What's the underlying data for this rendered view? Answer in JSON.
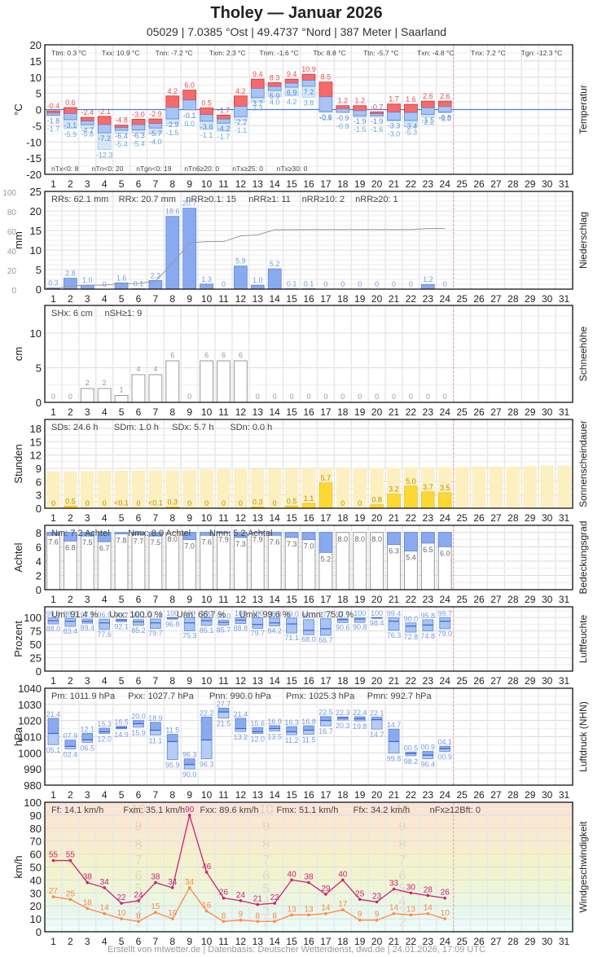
{
  "header": {
    "title": "Tholey  —  Januar 2026",
    "subtitle": "05029  |  7.0385 °Ost  |  49.4737 °Nord  |  387 Meter  |  Saarland"
  },
  "footer": "Erstellt von mtwetter.de | Datenbasis: Deutscher Wetterdienst, dwd.de | 24.01.2026, 17:09 UTC",
  "days": [
    1,
    2,
    3,
    4,
    5,
    6,
    7,
    8,
    9,
    10,
    11,
    12,
    13,
    14,
    15,
    16,
    17,
    18,
    19,
    20,
    21,
    22,
    23,
    24,
    25,
    26,
    27,
    28,
    29,
    30,
    31
  ],
  "chart_data": [
    {
      "type": "bar",
      "id": "temperatur",
      "title": "Temperatur",
      "ylabel": "°C",
      "ylim": [
        -20,
        20
      ],
      "yticks": [
        20,
        15,
        10,
        5,
        0,
        -5,
        -10,
        -15,
        -20
      ],
      "stats_top": [
        "Ttm: 0.3 °C",
        "Txx: 10.9 °C",
        "Tnn: -7.2 °C",
        "Txm: 2.3 °C",
        "Tnm: -1.6 °C",
        "Ttx: 8.8 °C",
        "Ttn: -5.7 °C",
        "Txn: -4.8 °C",
        "Tnx: 7.2 °C",
        "Tgn: -12.3 °C"
      ],
      "stats_bottom": [
        "nTx<0: 8",
        "nTn<0: 20",
        "nTgn<0: 19",
        "nTn6≥20: 0",
        "nTx≥25: 0",
        "nTx≥30: 0"
      ],
      "series": [
        {
          "name": "Tmax",
          "values": [
            -0.4,
            0.6,
            -2.4,
            -2.1,
            -4.8,
            -3.0,
            -2.9,
            4.2,
            6.0,
            0.5,
            -1.7,
            4.2,
            9.4,
            8.3,
            9.4,
            10.9,
            8.5,
            1.2,
            1.2,
            -0.7,
            1.7,
            1.6,
            2.6,
            2.6
          ]
        },
        {
          "name": "Tmin",
          "values": [
            -1.8,
            -3.1,
            -4.7,
            -7.2,
            -6.4,
            -6.3,
            -5.7,
            -2.9,
            -0.1,
            -3.6,
            -4.2,
            -2.2,
            3.7,
            5.9,
            6.9,
            7.2,
            -0.6,
            -0.9,
            -1.9,
            -1.9,
            -3.3,
            -3.4,
            -1.5,
            -0.8
          ]
        },
        {
          "name": "Tgmin",
          "values": [
            -1.7,
            -5.9,
            -5.8,
            -12.3,
            -5.4,
            -5.4,
            -4.0,
            -1.5,
            0.0,
            -1.1,
            -1.7,
            -1.1,
            2.3,
            4.0,
            4.2,
            3.8,
            -0.9,
            -0.9,
            -1.5,
            -1.6,
            -3.0,
            -5.3,
            -2.2,
            -1.0
          ]
        }
      ]
    },
    {
      "type": "bar",
      "id": "niederschlag",
      "title": "Niederschlag",
      "ylabel": "mm",
      "ylim": [
        0,
        25
      ],
      "yticks": [
        25,
        20,
        15,
        10,
        5,
        0
      ],
      "yticks_cumulative": [
        100,
        80,
        60,
        40,
        20,
        0
      ],
      "stats_top": [
        "RRs: 62.1 mm",
        "RRx: 20.7 mm",
        "nRR≥0.1: 15",
        "nRR≥1: 11",
        "nRR≥10: 2",
        "nRR≥20: 1"
      ],
      "values": [
        0.3,
        2.8,
        1.0,
        0,
        1.6,
        0.1,
        2.2,
        18.6,
        20.7,
        1.3,
        0,
        5.9,
        1.0,
        5.2,
        0.1,
        0.1,
        0,
        0,
        0,
        0,
        0,
        0,
        1.2,
        0
      ],
      "labels": [
        "0.3",
        "2.8",
        "1.0",
        "0",
        "1.6",
        "0.1",
        "2.2",
        "18.6",
        "20.7",
        "1.3",
        "0",
        "5.9",
        "1.0",
        "5.2",
        "0.1",
        "0.1",
        "0",
        "0",
        "0",
        "0",
        "0",
        "0",
        "1.2",
        "0"
      ]
    },
    {
      "type": "bar",
      "id": "schneehoehe",
      "title": "Schneehöhe",
      "ylabel": "cm",
      "ylim": [
        0,
        14
      ],
      "yticks": [
        10,
        5,
        0
      ],
      "stats_top": [
        "SHx: 6 cm",
        "nSH≥1: 9"
      ],
      "values": [
        0,
        0,
        2,
        2,
        1,
        4,
        4,
        6,
        0,
        6,
        6,
        6,
        0,
        0,
        0,
        0,
        0,
        0,
        0,
        0,
        0,
        0,
        0,
        0
      ]
    },
    {
      "type": "bar",
      "id": "sonnenscheindauer",
      "title": "Sonnenscheindauer",
      "ylabel": "Stunden",
      "ylim": [
        0,
        20
      ],
      "yticks": [
        18,
        15,
        12,
        9,
        6,
        3,
        0
      ],
      "stats_top": [
        "SDs: 24.6 h",
        "SDm: 1.0 h",
        "SDx: 5.7 h",
        "SDn: 0.0 h"
      ],
      "values": [
        0,
        0.5,
        0,
        0,
        0.05,
        0,
        0.05,
        0.3,
        0,
        0,
        0,
        0,
        0.3,
        0,
        0.5,
        1.1,
        5.7,
        0,
        0,
        0.8,
        3.2,
        5.0,
        3.7,
        3.5
      ],
      "labels": [
        "0",
        "0.5",
        "0",
        "0",
        "<0.1",
        "0",
        "<0.1",
        "0.3",
        "0",
        "0",
        "0",
        "0",
        "0.3",
        "0",
        "0.5",
        "1.1",
        "5.7",
        "0",
        "0",
        "0.8",
        "3.2",
        "5.0",
        "3.7",
        "3.5"
      ],
      "possible": [
        8.3,
        8.3,
        8.4,
        8.5,
        8.5,
        8.5,
        8.6,
        8.6,
        8.6,
        8.7,
        8.8,
        8.8,
        8.9,
        8.9,
        8.9,
        9.0,
        9.0,
        9.0,
        9.0,
        9.1,
        9.1,
        9.2,
        9.2,
        9.3,
        9.3,
        9.4,
        9.4,
        9.4,
        9.5,
        9.6,
        9.6
      ]
    },
    {
      "type": "bar",
      "id": "bedeckungsgrad",
      "title": "Bedeckungsgrad",
      "ylabel": "Achtel",
      "ylim": [
        0,
        9
      ],
      "yticks": [
        8,
        6,
        4,
        2,
        0
      ],
      "stats_top": [
        "Nm: 7.2 Achtel",
        "Nmx: 8.0 Achtel",
        "Nmn: 5.2 Achtel"
      ],
      "values": [
        7.6,
        6.8,
        7.5,
        6.7,
        7.8,
        7.7,
        7.5,
        8.0,
        7.0,
        7.6,
        7.9,
        7.3,
        7.9,
        7.6,
        7.3,
        7.0,
        5.2,
        8.0,
        8.0,
        8.0,
        6.3,
        5.4,
        6.5,
        6.0
      ]
    },
    {
      "type": "bar",
      "id": "luftfeuchte",
      "title": "Luftfeuchte",
      "ylabel": "Prozent",
      "ylim": [
        0,
        120
      ],
      "yticks": [
        100,
        75,
        50,
        25,
        0
      ],
      "stats_top": [
        "Um: 91.4 %",
        "Uxx: 100.0 %",
        "Unn: 66.7 %",
        "Umx: 99.6 %",
        "Umn: 75.0 %"
      ],
      "series": [
        {
          "name": "Umax",
          "values": [
            99.0,
            98.5,
            97.2,
            96.9,
            96.7,
            96.1,
            97.2,
            100,
            100,
            100,
            95.0,
            100,
            100,
            98.8,
            99.0,
            96.0,
            97.7,
            97.7,
            100,
            100,
            99.4,
            90.0,
            95.8,
            99.7
          ]
        },
        {
          "name": "Umean",
          "values": [
            94,
            93,
            93,
            90,
            95,
            92,
            90,
            99,
            90,
            94,
            91,
            95,
            87,
            90,
            88,
            76,
            79,
            96,
            97,
            99,
            93,
            84,
            86,
            93
          ]
        },
        {
          "name": "Umin",
          "values": [
            88.0,
            83.4,
            89.4,
            77.6,
            92.1,
            85.2,
            79.7,
            96.8,
            75.3,
            85.1,
            85.7,
            88.8,
            79.7,
            84.2,
            71.1,
            68.0,
            66.7,
            90.6,
            90.8,
            98.4,
            76.3,
            72.8,
            74.8,
            79.0
          ]
        }
      ]
    },
    {
      "type": "bar",
      "id": "luftdruck",
      "title": "Luftdruck (NHN)",
      "ylabel": "hPa",
      "ylim": [
        980,
        1040
      ],
      "yticks": [
        1040,
        1030,
        1020,
        1010,
        1000,
        990,
        980
      ],
      "stats_top": [
        "Pm: 1011.9 hPa",
        "Pxx: 1027.7 hPa",
        "Pnn: 990.0 hPa",
        "Pmx: 1025.3 hPa",
        "Pmn: 992.7 hPa"
      ],
      "series": [
        {
          "name": "Pmax",
          "values": [
            1021.4,
            1007.9,
            1012.1,
            1015.3,
            1016.5,
            1020.0,
            1018.9,
            1011.5,
            996.3,
            1022.2,
            1027.7,
            1021.4,
            1015.6,
            1016.9,
            1016.3,
            1016.8,
            1022.5,
            1022.3,
            1022.4,
            1022.1,
            1014.7,
            1000.5,
            1000.9,
            1004.1
          ]
        },
        {
          "name": "Pmean",
          "values": [
            1012,
            1004,
            1008,
            1013,
            1015.5,
            1018,
            1014,
            1007,
            992.7,
            1008,
            1025.3,
            1015,
            1013,
            1015,
            1013,
            1014,
            1020,
            1021.5,
            1021,
            1020.5,
            1007,
            999.5,
            998.5,
            1002.5
          ]
        },
        {
          "name": "Pmin",
          "values": [
            1005.1,
            1002.4,
            1006.5,
            1012.0,
            1014.9,
            1015.9,
            1011.1,
            995.9,
            990.0,
            996.3,
            1021.5,
            1013.2,
            1012.0,
            1013.5,
            1011.2,
            1011.5,
            1016.7,
            1020.3,
            1019.8,
            1014.7,
            999.8,
            998.2,
            996.4,
            1000.9
          ]
        }
      ],
      "labels_max": [
        "21.4",
        "07.9",
        "12.1",
        "15.3",
        "16.5",
        "20.0",
        "18.9",
        "11.5",
        "96.3",
        "22.2",
        "27.7",
        "21.4",
        "15.6",
        "16.9",
        "16.3",
        "16.8",
        "22.5",
        "22.3",
        "22.4",
        "22.1",
        "14.7",
        "00.5",
        "00.9",
        "04.1"
      ],
      "labels_min": [
        "05.1",
        "02.4",
        "06.5",
        "12.0",
        "14.9",
        "15.9",
        "11.1",
        "95.9",
        "90.0",
        "96.3",
        "21.5",
        "13.2",
        "12.0",
        "13.5",
        "11.2",
        "11.5",
        "16.7",
        "20.3",
        "19.8",
        "14.7",
        "99.8",
        "98.2",
        "96.4",
        "00.9"
      ]
    },
    {
      "type": "line",
      "id": "windgeschwindigkeit",
      "title": "Windgeschwindigkeit",
      "ylabel": "km/h",
      "ylim": [
        0,
        100
      ],
      "yticks": [
        100,
        90,
        80,
        70,
        60,
        50,
        40,
        30,
        20,
        10,
        0
      ],
      "stats_top": [
        "Ff: 14.1 km/h",
        "Fxm: 35.1 km/h",
        "Fxx: 89.6 km/h",
        "Fmx: 51.1 km/h",
        "Ffx: 34.2 km/h",
        "nFx≥12Bft: 0"
      ],
      "series": [
        {
          "name": "Fx (Böen)",
          "color": "#cc2277",
          "values": [
            55,
            55,
            38,
            34,
            22,
            24,
            38,
            34,
            90,
            46,
            26,
            24,
            21,
            22,
            40,
            38,
            29,
            40,
            25,
            23,
            33,
            30,
            28,
            26
          ]
        },
        {
          "name": "Fm (Mittel)",
          "color": "#ff8844",
          "values": [
            27,
            25,
            18,
            14,
            10,
            8,
            15,
            10,
            34,
            16,
            8,
            9,
            8,
            8,
            13,
            13,
            14,
            17,
            9,
            9,
            14,
            13,
            14,
            10
          ]
        }
      ],
      "beaufort_labels": [
        "2",
        "3",
        "4",
        "5",
        "6",
        "7",
        "8",
        "9",
        "10"
      ]
    }
  ]
}
